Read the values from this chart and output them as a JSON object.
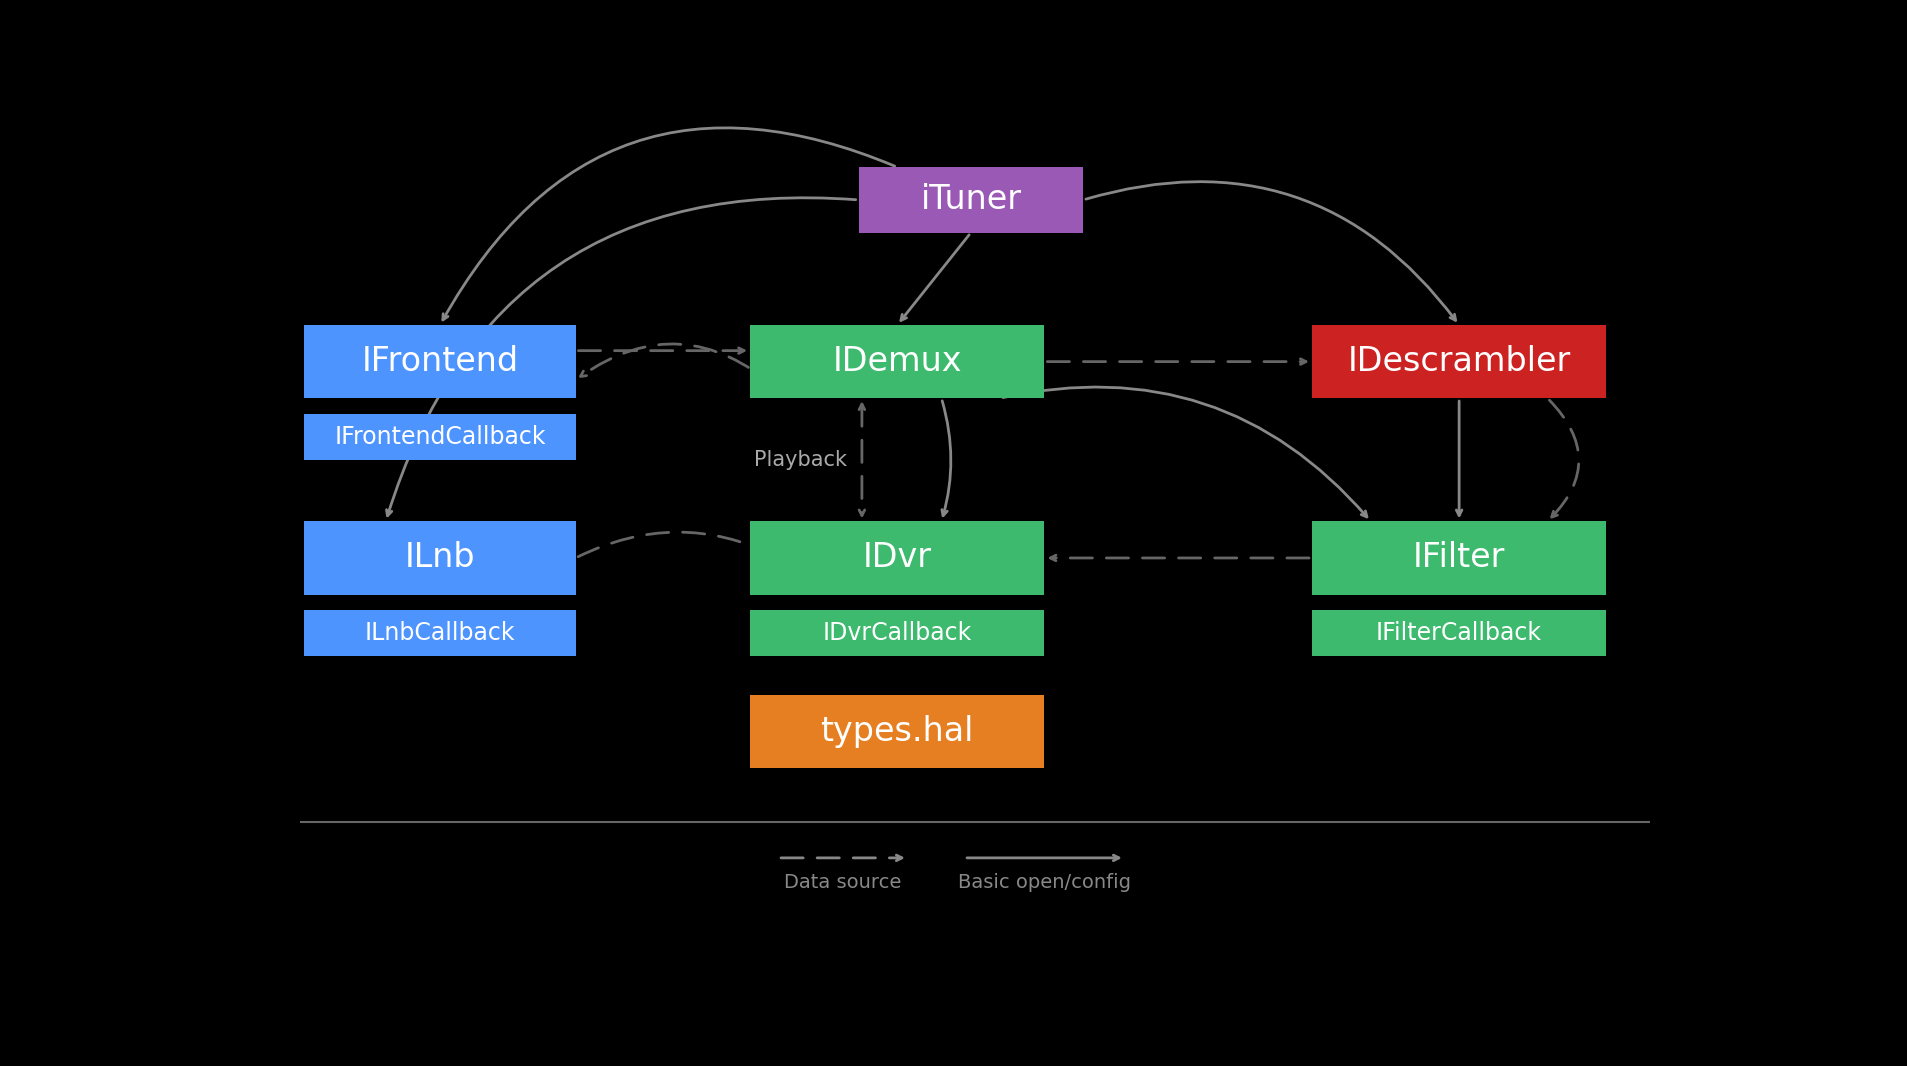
{
  "bg_color": "#000000",
  "iTuner_color": "#9b59b6",
  "blue_color": "#4d94ff",
  "green_color": "#3dba6e",
  "red_color": "#cc2222",
  "orange_color": "#e67e22",
  "arrow_color": "#888888",
  "dashed_color": "#666666",
  "text_color": "#ffffff",
  "legend_sep_color": "#666666",
  "playback_label": "Playback",
  "data_source_label": "Data source",
  "basic_open_label": "Basic open/config",
  "fig_w": 19.08,
  "fig_h": 10.66
}
